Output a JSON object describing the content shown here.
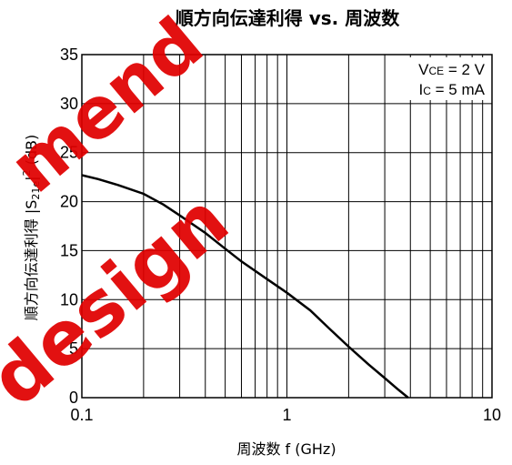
{
  "chart_data": {
    "type": "line",
    "title": "順方向伝達利得 vs. 周波数",
    "xlabel": "周波数  f (GHz)",
    "ylabel": {
      "prefix": "順方向伝達利得  |S",
      "sub": "21e",
      "mid": "|",
      "sup": "2",
      "suffix": " (dB)"
    },
    "xscale": "log",
    "xlim": [
      0.1,
      10
    ],
    "ylim": [
      0,
      35
    ],
    "grid": true,
    "xticks": [
      {
        "value": 0.1,
        "label": "0.1"
      },
      {
        "value": 1,
        "label": "1"
      },
      {
        "value": 10,
        "label": "10"
      }
    ],
    "yticks": [
      {
        "value": 0,
        "label": "0"
      },
      {
        "value": 5,
        "label": "5"
      },
      {
        "value": 10,
        "label": "10"
      },
      {
        "value": 15,
        "label": "15"
      },
      {
        "value": 20,
        "label": "20"
      },
      {
        "value": 25,
        "label": "25"
      },
      {
        "value": 30,
        "label": "30"
      },
      {
        "value": 35,
        "label": "35"
      }
    ],
    "series": [
      {
        "x": [
          0.1,
          0.12,
          0.15,
          0.2,
          0.25,
          0.3,
          0.4,
          0.5,
          0.6,
          0.8,
          1.0,
          1.3,
          1.6,
          2.0,
          2.5,
          3.0,
          3.5,
          3.9
        ],
        "y": [
          22.7,
          22.3,
          21.7,
          20.8,
          19.7,
          18.6,
          16.8,
          15.2,
          13.9,
          12.1,
          10.7,
          8.9,
          7.1,
          5.2,
          3.4,
          2.0,
          0.8,
          0
        ]
      }
    ],
    "annotations": [
      {
        "main": "V",
        "sub": "CE",
        "rest": " = 2 V"
      },
      {
        "main": "I",
        "sub": "C",
        "rest": " = 5 mA"
      }
    ]
  },
  "watermark": {
    "lines": [
      "mend",
      "design"
    ],
    "color": "#e00000"
  }
}
